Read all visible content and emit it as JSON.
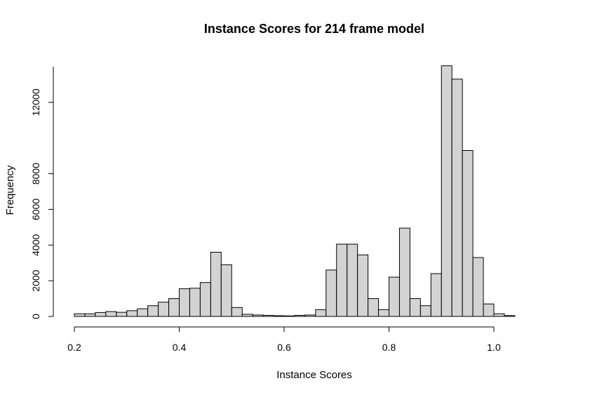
{
  "chart_data": {
    "type": "bar",
    "title": "Instance Scores for 214 frame model",
    "xlabel": "Instance Scores",
    "ylabel": "Frequency",
    "xlim": [
      0.2,
      1.12
    ],
    "ylim": [
      0,
      14000
    ],
    "grid": false,
    "x_ticks": [
      {
        "value": 0.2,
        "label": "0.2"
      },
      {
        "value": 0.4,
        "label": "0.4"
      },
      {
        "value": 0.6,
        "label": "0.6"
      },
      {
        "value": 0.8,
        "label": "0.8"
      },
      {
        "value": 1.0,
        "label": "1.0"
      }
    ],
    "y_ticks": [
      {
        "value": 0,
        "label": "0"
      },
      {
        "value": 2000,
        "label": "2000"
      },
      {
        "value": 4000,
        "label": "4000"
      },
      {
        "value": 6000,
        "label": "6000"
      },
      {
        "value": 8000,
        "label": "8000"
      },
      {
        "value": 12000,
        "label": "12000"
      }
    ],
    "y_axis_max": 14000,
    "bin_width": 0.02,
    "bins_start": [
      0.2,
      0.22,
      0.24,
      0.26,
      0.28,
      0.3,
      0.32,
      0.34,
      0.36,
      0.38,
      0.4,
      0.42,
      0.44,
      0.46,
      0.48,
      0.5,
      0.52,
      0.54,
      0.56,
      0.58,
      0.6,
      0.62,
      0.64,
      0.66,
      0.68,
      0.7,
      0.72,
      0.74,
      0.76,
      0.78,
      0.8,
      0.82,
      0.84,
      0.86,
      0.88,
      0.9,
      0.92,
      0.94,
      0.96,
      0.98,
      1.0,
      1.02,
      1.04,
      1.06,
      1.08,
      1.1
    ],
    "values": [
      150,
      150,
      220,
      270,
      230,
      320,
      430,
      600,
      800,
      1000,
      1550,
      1580,
      1900,
      3600,
      2900,
      500,
      120,
      80,
      60,
      40,
      30,
      60,
      80,
      380,
      2600,
      4050,
      4050,
      3450,
      1000,
      380,
      2200,
      4950,
      1000,
      600,
      2400,
      14050,
      13300,
      9300,
      3300,
      700,
      150,
      50,
      0,
      0,
      0,
      0
    ]
  }
}
